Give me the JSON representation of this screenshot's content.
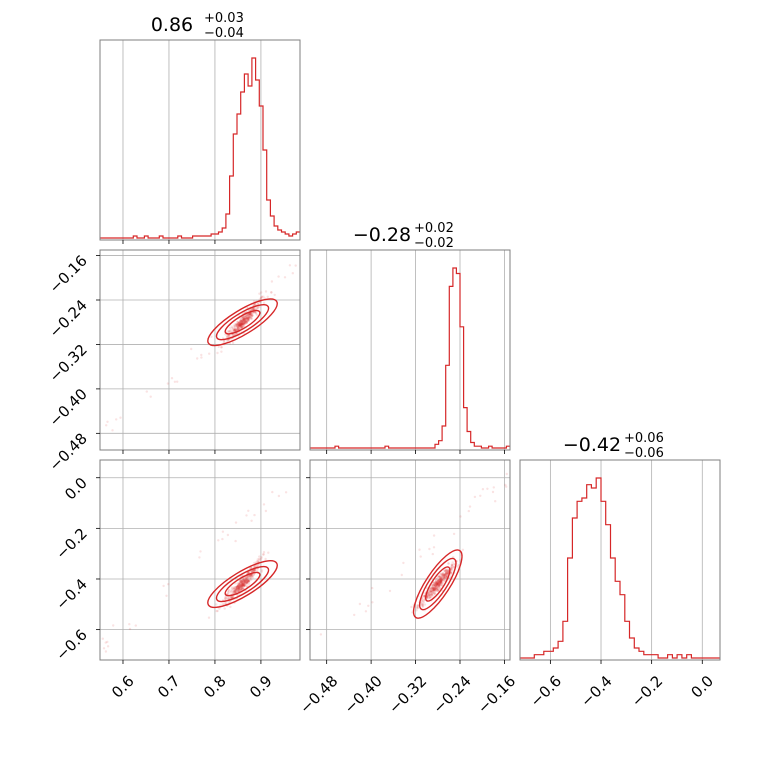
{
  "colors": {
    "series": "#d62728",
    "grid": "#b0b0b0",
    "frame": "#7f7f7f"
  },
  "chart_data": {
    "type": "corner",
    "grid": true,
    "parameters": [
      {
        "title_value": "0.86",
        "plus": "+0.03",
        "minus": "−0.04",
        "median": 0.86,
        "range": [
          0.55,
          0.985
        ],
        "ticks": [
          0.6,
          0.7,
          0.8,
          0.9
        ],
        "tick_labels": [
          "0.6",
          "0.7",
          "0.8",
          "0.9"
        ]
      },
      {
        "title_value": "−0.28",
        "plus": "+0.02",
        "minus": "−0.02",
        "median": -0.28,
        "range": [
          -0.51,
          -0.15
        ],
        "ticks": [
          -0.48,
          -0.4,
          -0.32,
          -0.24,
          -0.16
        ],
        "tick_labels": [
          "−0.48",
          "−0.40",
          "−0.32",
          "−0.24",
          "−0.16"
        ]
      },
      {
        "title_value": "−0.42",
        "plus": "+0.06",
        "minus": "−0.06",
        "median": -0.42,
        "range": [
          -0.72,
          0.07
        ],
        "ticks": [
          -0.6,
          -0.4,
          -0.2,
          0.0
        ],
        "tick_labels": [
          "−0.6",
          "−0.4",
          "−0.2",
          "0.0"
        ]
      }
    ],
    "histograms": [
      {
        "param": 0,
        "bin_edges": [
          0.55,
          0.985
        ],
        "counts": [
          0,
          0,
          0,
          0,
          0,
          0,
          0,
          0,
          0,
          1,
          0,
          0,
          1,
          0,
          0,
          0,
          1,
          0,
          0,
          0,
          0,
          1,
          0,
          0,
          0,
          1,
          1,
          1,
          1,
          1,
          2,
          2,
          3,
          5,
          12,
          31,
          52,
          62,
          73,
          82,
          76,
          90,
          79,
          66,
          44,
          19,
          11,
          6,
          4,
          3,
          2,
          1,
          2,
          3
        ]
      },
      {
        "param": 1,
        "bin_edges": [
          -0.51,
          -0.15
        ],
        "counts": [
          0,
          0,
          0,
          0,
          0,
          0,
          0,
          1,
          0,
          0,
          0,
          0,
          0,
          0,
          0,
          0,
          0,
          0,
          0,
          0,
          0,
          1,
          0,
          0,
          0,
          0,
          0,
          0,
          0,
          0,
          0,
          0,
          0,
          0,
          0,
          2,
          4,
          12,
          45,
          88,
          98,
          95,
          66,
          22,
          9,
          3,
          1,
          1,
          0,
          0,
          1,
          0,
          0,
          0,
          0,
          1
        ]
      },
      {
        "param": 2,
        "bin_edges": [
          -0.72,
          0.07
        ],
        "counts": [
          0,
          0,
          0,
          1,
          1,
          2,
          2,
          3,
          5,
          11,
          30,
          42,
          47,
          48,
          52,
          51,
          54,
          47,
          40,
          30,
          23,
          19,
          11,
          6,
          3,
          2,
          1,
          1,
          1,
          0,
          0,
          1,
          0,
          1,
          0,
          1,
          0,
          0,
          0,
          0,
          0,
          0
        ]
      }
    ],
    "scatter_panels": [
      {
        "x_param": 0,
        "y_param": 1,
        "correlation": "positive",
        "curvature": 0.0
      },
      {
        "x_param": 0,
        "y_param": 2,
        "correlation": "positive",
        "curvature": 1.0
      },
      {
        "x_param": 1,
        "y_param": 2,
        "correlation": "positive",
        "curvature": 0.0
      }
    ],
    "contour_levels": 3
  }
}
